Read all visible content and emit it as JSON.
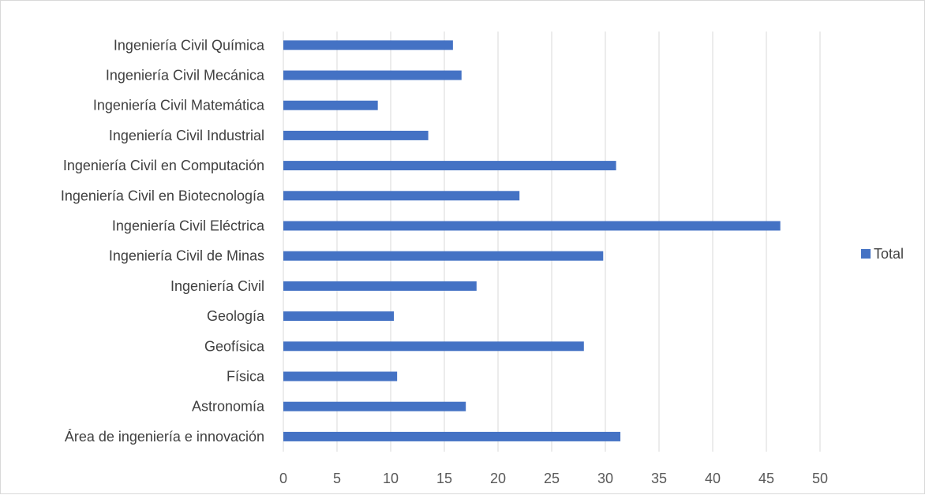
{
  "chart_data": {
    "type": "bar",
    "orientation": "horizontal",
    "title": "",
    "xlabel": "",
    "ylabel": "",
    "categories": [
      "Área de ingeniería e innovación",
      "Astronomía",
      "Física",
      "Geofísica",
      "Geología",
      "Ingeniería Civil",
      "Ingeniería Civil de Minas",
      "Ingeniería Civil Eléctrica",
      "Ingeniería Civil en Biotecnología",
      "Ingeniería Civil en Computación",
      "Ingeniería Civil Industrial",
      "Ingeniería Civil Matemática",
      "Ingeniería Civil Mecánica",
      "Ingeniería Civil Química"
    ],
    "series": [
      {
        "name": "Total",
        "color": "#4472c4",
        "values": [
          31.4,
          17.0,
          10.6,
          28.0,
          10.3,
          18.0,
          29.8,
          46.3,
          22.0,
          31.0,
          13.5,
          8.8,
          16.6,
          15.8
        ]
      }
    ],
    "xlim": [
      0,
      50
    ],
    "xticks": [
      "0",
      "5",
      "10",
      "15",
      "20",
      "25",
      "30",
      "35",
      "40",
      "45",
      "50"
    ],
    "grid": "vertical",
    "legend": {
      "position": "right",
      "entries": [
        "Total"
      ]
    }
  }
}
